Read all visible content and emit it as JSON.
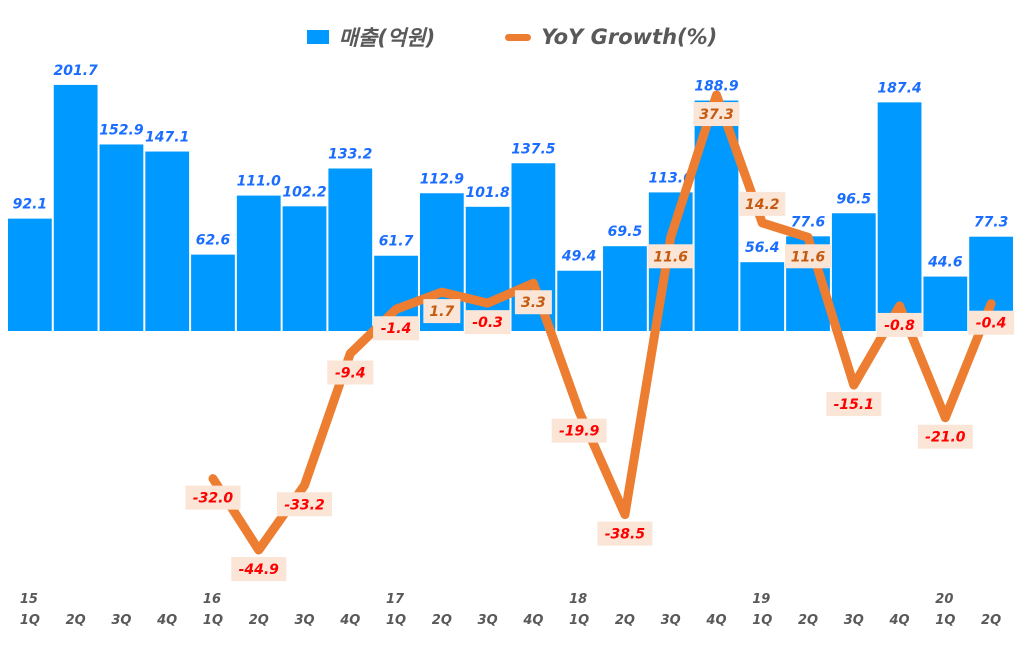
{
  "chart_data": {
    "type": "bar+line",
    "title": "",
    "categories": [
      "15 1Q",
      "15 2Q",
      "15 3Q",
      "15 4Q",
      "16 1Q",
      "16 2Q",
      "16 3Q",
      "16 4Q",
      "17 1Q",
      "17 2Q",
      "17 3Q",
      "17 4Q",
      "18 1Q",
      "18 2Q",
      "18 3Q",
      "18 4Q",
      "19 1Q",
      "19 2Q",
      "19 3Q",
      "19 4Q",
      "20 1Q",
      "20 2Q"
    ],
    "x_tick_years": [
      "15",
      "",
      "",
      "",
      "16",
      "",
      "",
      "",
      "17",
      "",
      "",
      "",
      "18",
      "",
      "",
      "",
      "19",
      "",
      "",
      "",
      "20",
      ""
    ],
    "x_tick_quarters": [
      "1Q",
      "2Q",
      "3Q",
      "4Q",
      "1Q",
      "2Q",
      "3Q",
      "4Q",
      "1Q",
      "2Q",
      "3Q",
      "4Q",
      "1Q",
      "2Q",
      "3Q",
      "4Q",
      "1Q",
      "2Q",
      "3Q",
      "4Q",
      "1Q",
      "2Q"
    ],
    "series": [
      {
        "name": "매출(억원)",
        "type": "bar",
        "axis": "primary",
        "color": "#0099ff",
        "values": [
          92.1,
          201.7,
          152.9,
          147.1,
          62.6,
          111.0,
          102.2,
          133.2,
          61.7,
          112.9,
          101.8,
          137.5,
          49.4,
          69.5,
          113.6,
          188.9,
          56.4,
          77.6,
          96.5,
          187.4,
          44.6,
          77.3
        ]
      },
      {
        "name": "YoY Growth(%)",
        "type": "line",
        "axis": "secondary",
        "color": "#ed7d31",
        "values": [
          null,
          null,
          null,
          null,
          -32.0,
          -44.9,
          -33.2,
          -9.4,
          -1.4,
          1.7,
          -0.3,
          3.3,
          -19.9,
          -38.5,
          11.6,
          37.3,
          14.2,
          11.6,
          -15.1,
          -0.8,
          -21.0,
          -0.4
        ]
      }
    ],
    "legend_position": "top",
    "grid": false,
    "data_labels": true,
    "label_colors": {
      "bar": "#1a6dff",
      "line_positive": "#c55a11",
      "line_negative": "#ff0000",
      "line_label_bg": "#fbe5d6",
      "axis_text": "#595959"
    }
  }
}
